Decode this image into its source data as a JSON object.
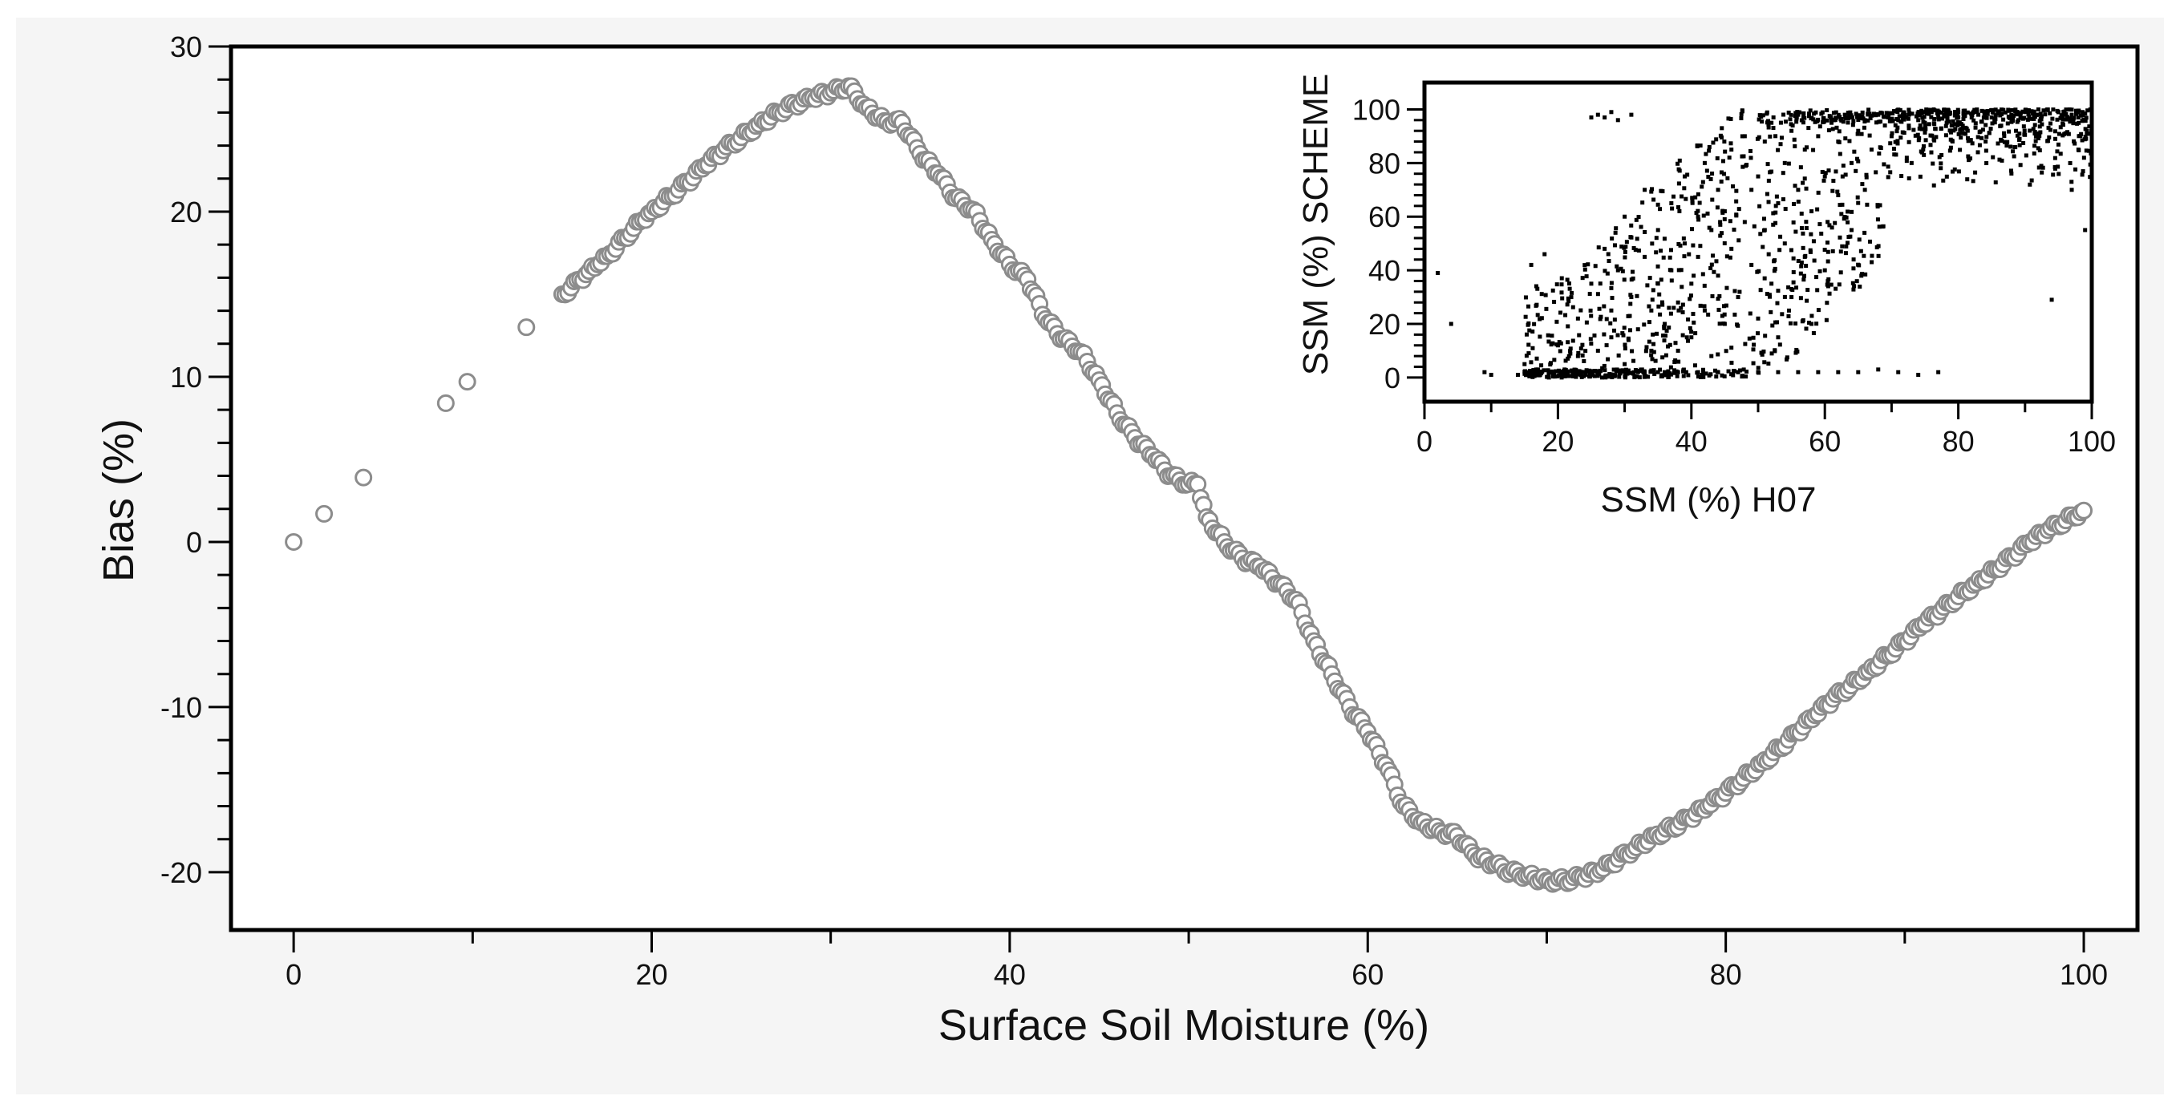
{
  "chart_data": [
    {
      "type": "scatter",
      "title": "",
      "xlabel": "Surface Soil Moisture (%)",
      "ylabel": "Bias (%)",
      "xlim": [
        -3.5,
        103
      ],
      "ylim": [
        -23.5,
        30
      ],
      "xticks": [
        0,
        20,
        40,
        60,
        80,
        100
      ],
      "xtick_labels": [
        "0",
        "20",
        "40",
        "60",
        "80",
        "100"
      ],
      "yticks": [
        -20,
        -10,
        0,
        10,
        20,
        30
      ],
      "ytick_labels": [
        "-20",
        "-10",
        "0",
        "10",
        "20",
        "30"
      ],
      "grid": false,
      "marker": "open-circle",
      "marker_color": "#8c8c8c",
      "series": [
        {
          "name": "Bias",
          "x": [
            0,
            1.7,
            3.9,
            8.5,
            9.7,
            13,
            15,
            15.5,
            16,
            16.5,
            17,
            17.5,
            18.5,
            19,
            19.5,
            20,
            21,
            22,
            23,
            24,
            25,
            26,
            27,
            28,
            29,
            30,
            31,
            32,
            33,
            34,
            35,
            36,
            37,
            38,
            39,
            40,
            41,
            42,
            43,
            44,
            45,
            46,
            47,
            48,
            49,
            50,
            50.5,
            51,
            52,
            53,
            54,
            55,
            56,
            57,
            58,
            59,
            60,
            61,
            62,
            63,
            64,
            65,
            66,
            67,
            68,
            69,
            70,
            71,
            72,
            73,
            74,
            75,
            76,
            77,
            78,
            79,
            80,
            81,
            82,
            83,
            84,
            85,
            86,
            87,
            88,
            89,
            90,
            91,
            92,
            93,
            94,
            95,
            96,
            97,
            98,
            99,
            100
          ],
          "y": [
            0,
            1.7,
            3.9,
            8.4,
            9.7,
            13,
            15,
            15.4,
            15.9,
            16.4,
            16.8,
            17.3,
            18.4,
            19,
            19.5,
            20,
            20.9,
            21.8,
            22.8,
            23.7,
            24.5,
            25.3,
            26,
            26.5,
            26.9,
            27.2,
            27.6,
            26.3,
            25.5,
            25.4,
            23.5,
            22.3,
            20.8,
            20.1,
            18.3,
            16.8,
            15.9,
            13.5,
            12.3,
            11.5,
            9.8,
            7.8,
            6.3,
            5.2,
            4,
            3.5,
            3.5,
            1.5,
            0,
            -1,
            -1.5,
            -2.5,
            -3.5,
            -6,
            -8,
            -10,
            -11.5,
            -13.5,
            -16,
            -17,
            -17.5,
            -17.8,
            -19,
            -19.5,
            -20,
            -20.2,
            -20.5,
            -20.5,
            -20.3,
            -19.9,
            -19.2,
            -18.5,
            -17.8,
            -17.3,
            -16.7,
            -16,
            -15.2,
            -14.3,
            -13.4,
            -12.5,
            -11.5,
            -10.5,
            -9.5,
            -8.7,
            -7.8,
            -6.9,
            -6,
            -5,
            -4.2,
            -3.3,
            -2.5,
            -1.7,
            -0.9,
            0,
            0.7,
            1.3,
            1.9
          ]
        }
      ]
    },
    {
      "type": "scatter",
      "title": "",
      "xlabel": "SSM (%) H07",
      "ylabel": "SSM (%) SCHEME",
      "xlim": [
        0,
        100
      ],
      "ylim": [
        -9,
        110
      ],
      "xticks": [
        0,
        20,
        40,
        60,
        80,
        100
      ],
      "xtick_labels": [
        "0",
        "20",
        "40",
        "60",
        "80",
        "100"
      ],
      "yticks": [
        0,
        20,
        40,
        60,
        80,
        100
      ],
      "ytick_labels": [
        "0",
        "20",
        "40",
        "60",
        "80",
        "100"
      ],
      "grid": false,
      "legend": "none",
      "marker": "small-square-dot",
      "marker_color": "#000000",
      "series": [
        {
          "name": "SCHEME vs H07",
          "x": [
            2,
            4,
            9,
            10,
            14,
            15,
            16,
            17,
            18,
            19,
            20,
            21,
            22,
            23,
            23,
            24,
            25,
            26,
            27,
            28,
            28,
            29,
            30,
            30,
            31,
            32,
            32,
            33,
            33,
            34,
            34,
            35,
            35,
            36,
            36,
            37,
            37,
            38,
            38,
            39,
            39,
            40,
            40,
            41,
            41,
            42,
            42,
            43,
            43,
            44,
            44,
            45,
            45,
            46,
            46,
            47,
            47,
            48,
            48,
            49,
            49,
            50,
            50,
            51,
            51,
            52,
            52,
            53,
            53,
            54,
            54,
            55,
            55,
            56,
            56,
            57,
            57,
            58,
            58,
            59,
            60,
            60,
            61,
            62,
            62,
            63,
            64,
            64,
            65,
            66,
            66,
            67,
            68,
            69,
            70,
            71,
            72,
            73,
            74,
            75,
            76,
            77,
            78,
            79,
            80,
            82,
            84,
            86,
            88,
            90,
            92,
            94,
            95,
            96,
            97,
            98,
            99,
            100,
            26,
            28,
            27,
            29,
            31,
            25,
            33,
            35,
            38,
            41,
            44,
            47,
            50,
            53,
            56,
            59,
            62,
            65,
            68,
            71,
            74,
            77,
            80,
            83,
            86,
            89,
            92,
            95,
            98,
            97,
            99,
            85,
            88
          ],
          "y": [
            39,
            20,
            2,
            1,
            1,
            5,
            42,
            3,
            46,
            2,
            12,
            3,
            30,
            22,
            8,
            2,
            35,
            10,
            48,
            25,
            15,
            40,
            5,
            60,
            30,
            18,
            2,
            45,
            70,
            25,
            10,
            55,
            35,
            20,
            2,
            65,
            40,
            28,
            10,
            50,
            75,
            35,
            15,
            60,
            45,
            25,
            80,
            55,
            8,
            38,
            70,
            62,
            20,
            48,
            85,
            30,
            2,
            58,
            90,
            42,
            70,
            22,
            75,
            55,
            88,
            35,
            95,
            65,
            15,
            80,
            50,
            92,
            30,
            70,
            98,
            45,
            85,
            62,
            20,
            90,
            75,
            40,
            95,
            68,
            88,
            98,
            55,
            80,
            92,
            96,
            70,
            85,
            98,
            94,
            90,
            96,
            98,
            80,
            96,
            95,
            99,
            97,
            98,
            94,
            99,
            97,
            98,
            99,
            96,
            99,
            98,
            29,
            99,
            98,
            70,
            85,
            55,
            98,
            98,
            99,
            97,
            96,
            98,
            97,
            2,
            2,
            2,
            2,
            2,
            2,
            2,
            2,
            2,
            2,
            2,
            2,
            3,
            2,
            1,
            2,
            97,
            98,
            99,
            96,
            98,
            99,
            97,
            98,
            96,
            97,
            98
          ]
        }
      ]
    }
  ]
}
